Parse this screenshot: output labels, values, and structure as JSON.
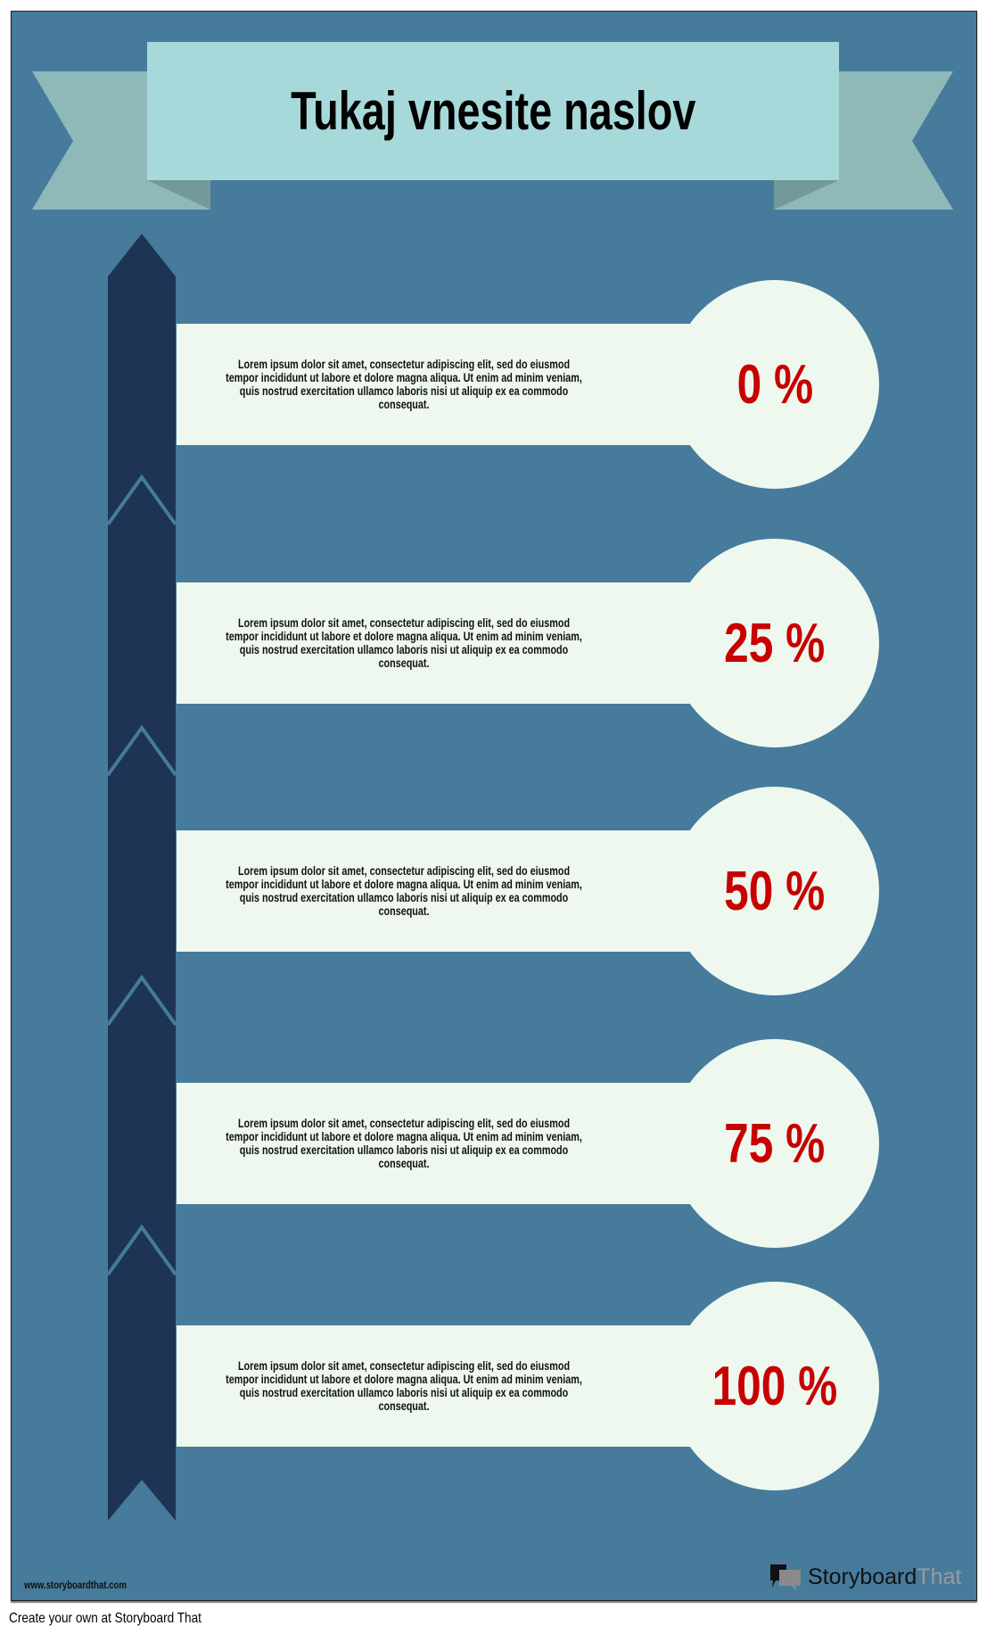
{
  "title": "Tukaj vnesite naslov",
  "colors": {
    "background": "#467b9c",
    "banner": "#a8d9da",
    "ribbon": "#8fb9b9",
    "column": "#1e3455",
    "card": "#eef8ef",
    "percent": "#c70000"
  },
  "rows": [
    {
      "text": "Lorem ipsum dolor sit amet, consectetur adipiscing elit, sed do eiusmod tempor incididunt ut labore et dolore magna aliqua. Ut enim ad minim veniam, quis nostrud exercitation ullamco laboris nisi ut aliquip ex ea commodo consequat.",
      "percent": "0 %"
    },
    {
      "text": "Lorem ipsum dolor sit amet, consectetur adipiscing elit, sed do eiusmod tempor incididunt ut labore et dolore magna aliqua. Ut enim ad minim veniam, quis nostrud exercitation ullamco laboris nisi ut aliquip ex ea commodo consequat.",
      "percent": "25 %"
    },
    {
      "text": "Lorem ipsum dolor sit amet, consectetur adipiscing elit, sed do eiusmod tempor incididunt ut labore et dolore magna aliqua. Ut enim ad minim veniam, quis nostrud exercitation ullamco laboris nisi ut aliquip ex ea commodo consequat.",
      "percent": "50 %"
    },
    {
      "text": "Lorem ipsum dolor sit amet, consectetur adipiscing elit, sed do eiusmod tempor incididunt ut labore et dolore magna aliqua. Ut enim ad minim veniam, quis nostrud exercitation ullamco laboris nisi ut aliquip ex ea commodo consequat.",
      "percent": "75 %"
    },
    {
      "text": "Lorem ipsum dolor sit amet, consectetur adipiscing elit, sed do eiusmod tempor incididunt ut labore et dolore magna aliqua. Ut enim ad minim veniam, quis nostrud exercitation ullamco laboris nisi ut aliquip ex ea commodo consequat.",
      "percent": "100 %"
    }
  ],
  "watermark_url": "www.storyboardthat.com",
  "logo": {
    "part1": "Storyboard",
    "part2": "That",
    "icon": "speech-bubbles-icon"
  },
  "footer": "Create your own at Storyboard That"
}
